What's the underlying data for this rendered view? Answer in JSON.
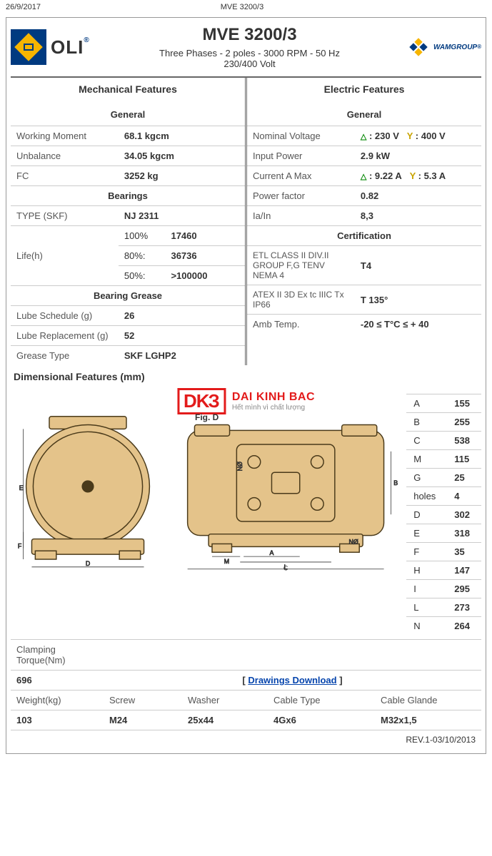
{
  "meta": {
    "date": "26/9/2017",
    "header_model": "MVE 3200/3"
  },
  "header": {
    "oli_text": "OLI",
    "title": "MVE 3200/3",
    "subtitle1": "Three Phases - 2 poles - 3000 RPM - 50 Hz",
    "subtitle2": "230/400 Volt",
    "wam_text": "WAMGROUP"
  },
  "mech": {
    "title": "Mechanical Features",
    "general_title": "General",
    "rows": [
      {
        "label": "Working Moment",
        "value": "68.1 kgcm"
      },
      {
        "label": "Unbalance",
        "value": "34.05 kgcm"
      },
      {
        "label": "FC",
        "value": "3252 kg"
      }
    ],
    "bearings_title": "Bearings",
    "type_label": "TYPE (SKF)",
    "type_val": "NJ 2311",
    "life_label": "Life(h)",
    "life_rows": [
      {
        "pct": "100%",
        "val": "17460"
      },
      {
        "pct": "80%:",
        "val": "36736"
      },
      {
        "pct": "50%:",
        "val": ">100000"
      }
    ],
    "grease_title": "Bearing Grease",
    "grease_rows": [
      {
        "label": "Lube Schedule (g)",
        "value": "26"
      },
      {
        "label": "Lube Replacement (g)",
        "value": "52"
      },
      {
        "label": "Grease Type",
        "value": "SKF LGHP2"
      }
    ]
  },
  "elec": {
    "title": "Electric Features",
    "general_title": "General",
    "nom_label": "Nominal Voltage",
    "nom_d": ": 230 V",
    "nom_y": ": 400 V",
    "rows": [
      {
        "label": "Input Power",
        "value": "2.9 kW"
      }
    ],
    "cur_label": "Current A Max",
    "cur_d": ": 9.22 A",
    "cur_y": ": 5.3 A",
    "rows2": [
      {
        "label": "Power factor",
        "value": "0.82"
      },
      {
        "label": "Ia/In",
        "value": "8,3"
      }
    ],
    "cert_title": "Certification",
    "cert_rows": [
      {
        "label": "ETL CLASS II DIV.II GROUP F,G TENV NEMA 4",
        "value": "T4"
      },
      {
        "label": "ATEX II 3D Ex tc IIIC Tx IP66",
        "value": "T 135°"
      },
      {
        "label": "Amb Temp.",
        "value": "-20 ≤ T°C ≤ + 40"
      }
    ],
    "tri_d": "△",
    "tri_y": "Y"
  },
  "dim": {
    "title": "Dimensional Features (mm)",
    "fig": "Fig. D",
    "watermark_box": "DK�",
    "watermark_l1": "DAI KINH BAC",
    "watermark_l2": "Hết mình vì chất lượng",
    "table": [
      {
        "k": "A",
        "v": "155"
      },
      {
        "k": "B",
        "v": "255"
      },
      {
        "k": "C",
        "v": "538"
      },
      {
        "k": "M",
        "v": "115"
      },
      {
        "k": "G",
        "v": "25"
      },
      {
        "k": "holes",
        "v": "4"
      },
      {
        "k": "D",
        "v": "302"
      },
      {
        "k": "E",
        "v": "318"
      },
      {
        "k": "F",
        "v": "35"
      },
      {
        "k": "H",
        "v": "147"
      },
      {
        "k": "I",
        "v": "295"
      },
      {
        "k": "L",
        "v": "273"
      },
      {
        "k": "N",
        "v": "264"
      }
    ],
    "torque_label": "Clamping Torque(Nm)",
    "torque_val": "696",
    "download": "Drawings Download",
    "bottom_headers": [
      "Weight(kg)",
      "Screw",
      "Washer",
      "Cable Type",
      "Cable Glande"
    ],
    "bottom_values": [
      "103",
      "M24",
      "25x44",
      "4Gx6",
      "M32x1,5"
    ]
  },
  "rev": "REV.1-03/10/2013",
  "colors": {
    "motor_fill": "#e4c38a",
    "motor_stroke": "#4a3a1a",
    "dim_line": "#333333"
  }
}
